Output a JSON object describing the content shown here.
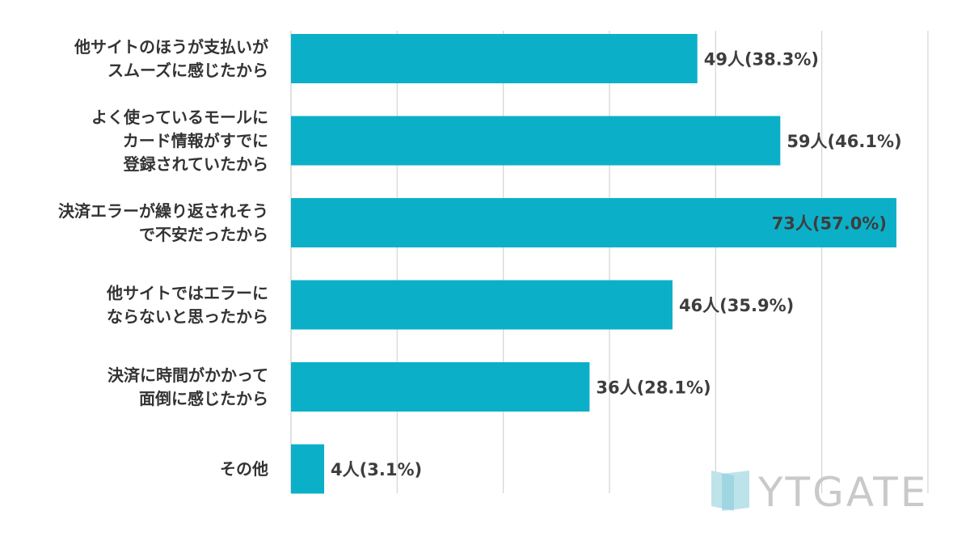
{
  "chart_data": {
    "type": "bar",
    "orientation": "horizontal",
    "categories": [
      [
        "他サイトのほうが支払いが",
        "スムーズに感じたから"
      ],
      [
        "よく使っているモールに",
        "カード情報がすでに",
        "登録されていたから"
      ],
      [
        "決済エラーが繰り返されそう",
        "で不安だったから"
      ],
      [
        "他サイトではエラーに",
        "ならないと思ったから"
      ],
      [
        "決済に時間がかかって",
        "面倒に感じたから"
      ],
      [
        "その他"
      ]
    ],
    "values": [
      49,
      59,
      73,
      46,
      36,
      4
    ],
    "percents": [
      38.3,
      46.1,
      57.0,
      35.9,
      28.1,
      3.1
    ],
    "data_labels": [
      "49人(38.3%)",
      "59人(46.1%)",
      "73人(57.0%)",
      "46人(35.9%)",
      "36人(28.1%)",
      "4人(3.1%)"
    ],
    "inside_label_index": 2,
    "xlim": [
      0,
      77
    ],
    "grid_step": 12.8,
    "grid": true,
    "title": "",
    "xlabel": "",
    "ylabel": ""
  },
  "colors": {
    "bar": "#0bb0c8",
    "grid": "#d4d4d4",
    "axis": "#cccccc",
    "label": "#333333",
    "logo": "#c9c9c9",
    "logo_icon_light": "#bfe3ea",
    "logo_icon_dark": "#86ccd9"
  },
  "logo": {
    "text": "YTGATE",
    "icon": "door-logo-icon"
  }
}
